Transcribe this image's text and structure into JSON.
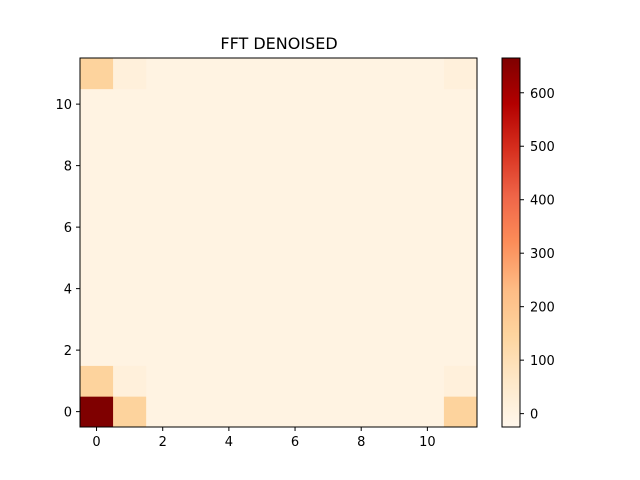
{
  "chart_data": {
    "type": "heatmap",
    "title": "FFT DENOISED",
    "xlabel": "",
    "ylabel": "",
    "rows": 12,
    "cols": 12,
    "xlim": [
      -0.5,
      11.5
    ],
    "ylim": [
      -0.5,
      11.5
    ],
    "origin": "lower",
    "x_ticks": [
      0,
      2,
      4,
      6,
      8,
      10
    ],
    "y_ticks": [
      0,
      2,
      4,
      6,
      8,
      10
    ],
    "colormap": "OrRd",
    "colormap_stops": [
      "#fff7ec",
      "#fee8c8",
      "#fdd49e",
      "#fdbb84",
      "#fc8d59",
      "#ef6548",
      "#d7301f",
      "#b30000",
      "#7f0000"
    ],
    "vmin": -25,
    "vmax": 665,
    "colorbar_ticks": [
      0,
      100,
      200,
      300,
      400,
      500,
      600
    ],
    "nonzero_cells": [
      {
        "row": 0,
        "col": 0,
        "value": 665
      },
      {
        "row": 0,
        "col": 1,
        "value": 150
      },
      {
        "row": 0,
        "col": 11,
        "value": 150
      },
      {
        "row": 1,
        "col": 0,
        "value": 150
      },
      {
        "row": 1,
        "col": 1,
        "value": 15
      },
      {
        "row": 1,
        "col": 11,
        "value": 15
      },
      {
        "row": 11,
        "col": 0,
        "value": 150
      },
      {
        "row": 11,
        "col": 1,
        "value": 15
      },
      {
        "row": 11,
        "col": 11,
        "value": 15
      }
    ],
    "background_value": 0,
    "grid": false,
    "colorbar_position": "right"
  }
}
